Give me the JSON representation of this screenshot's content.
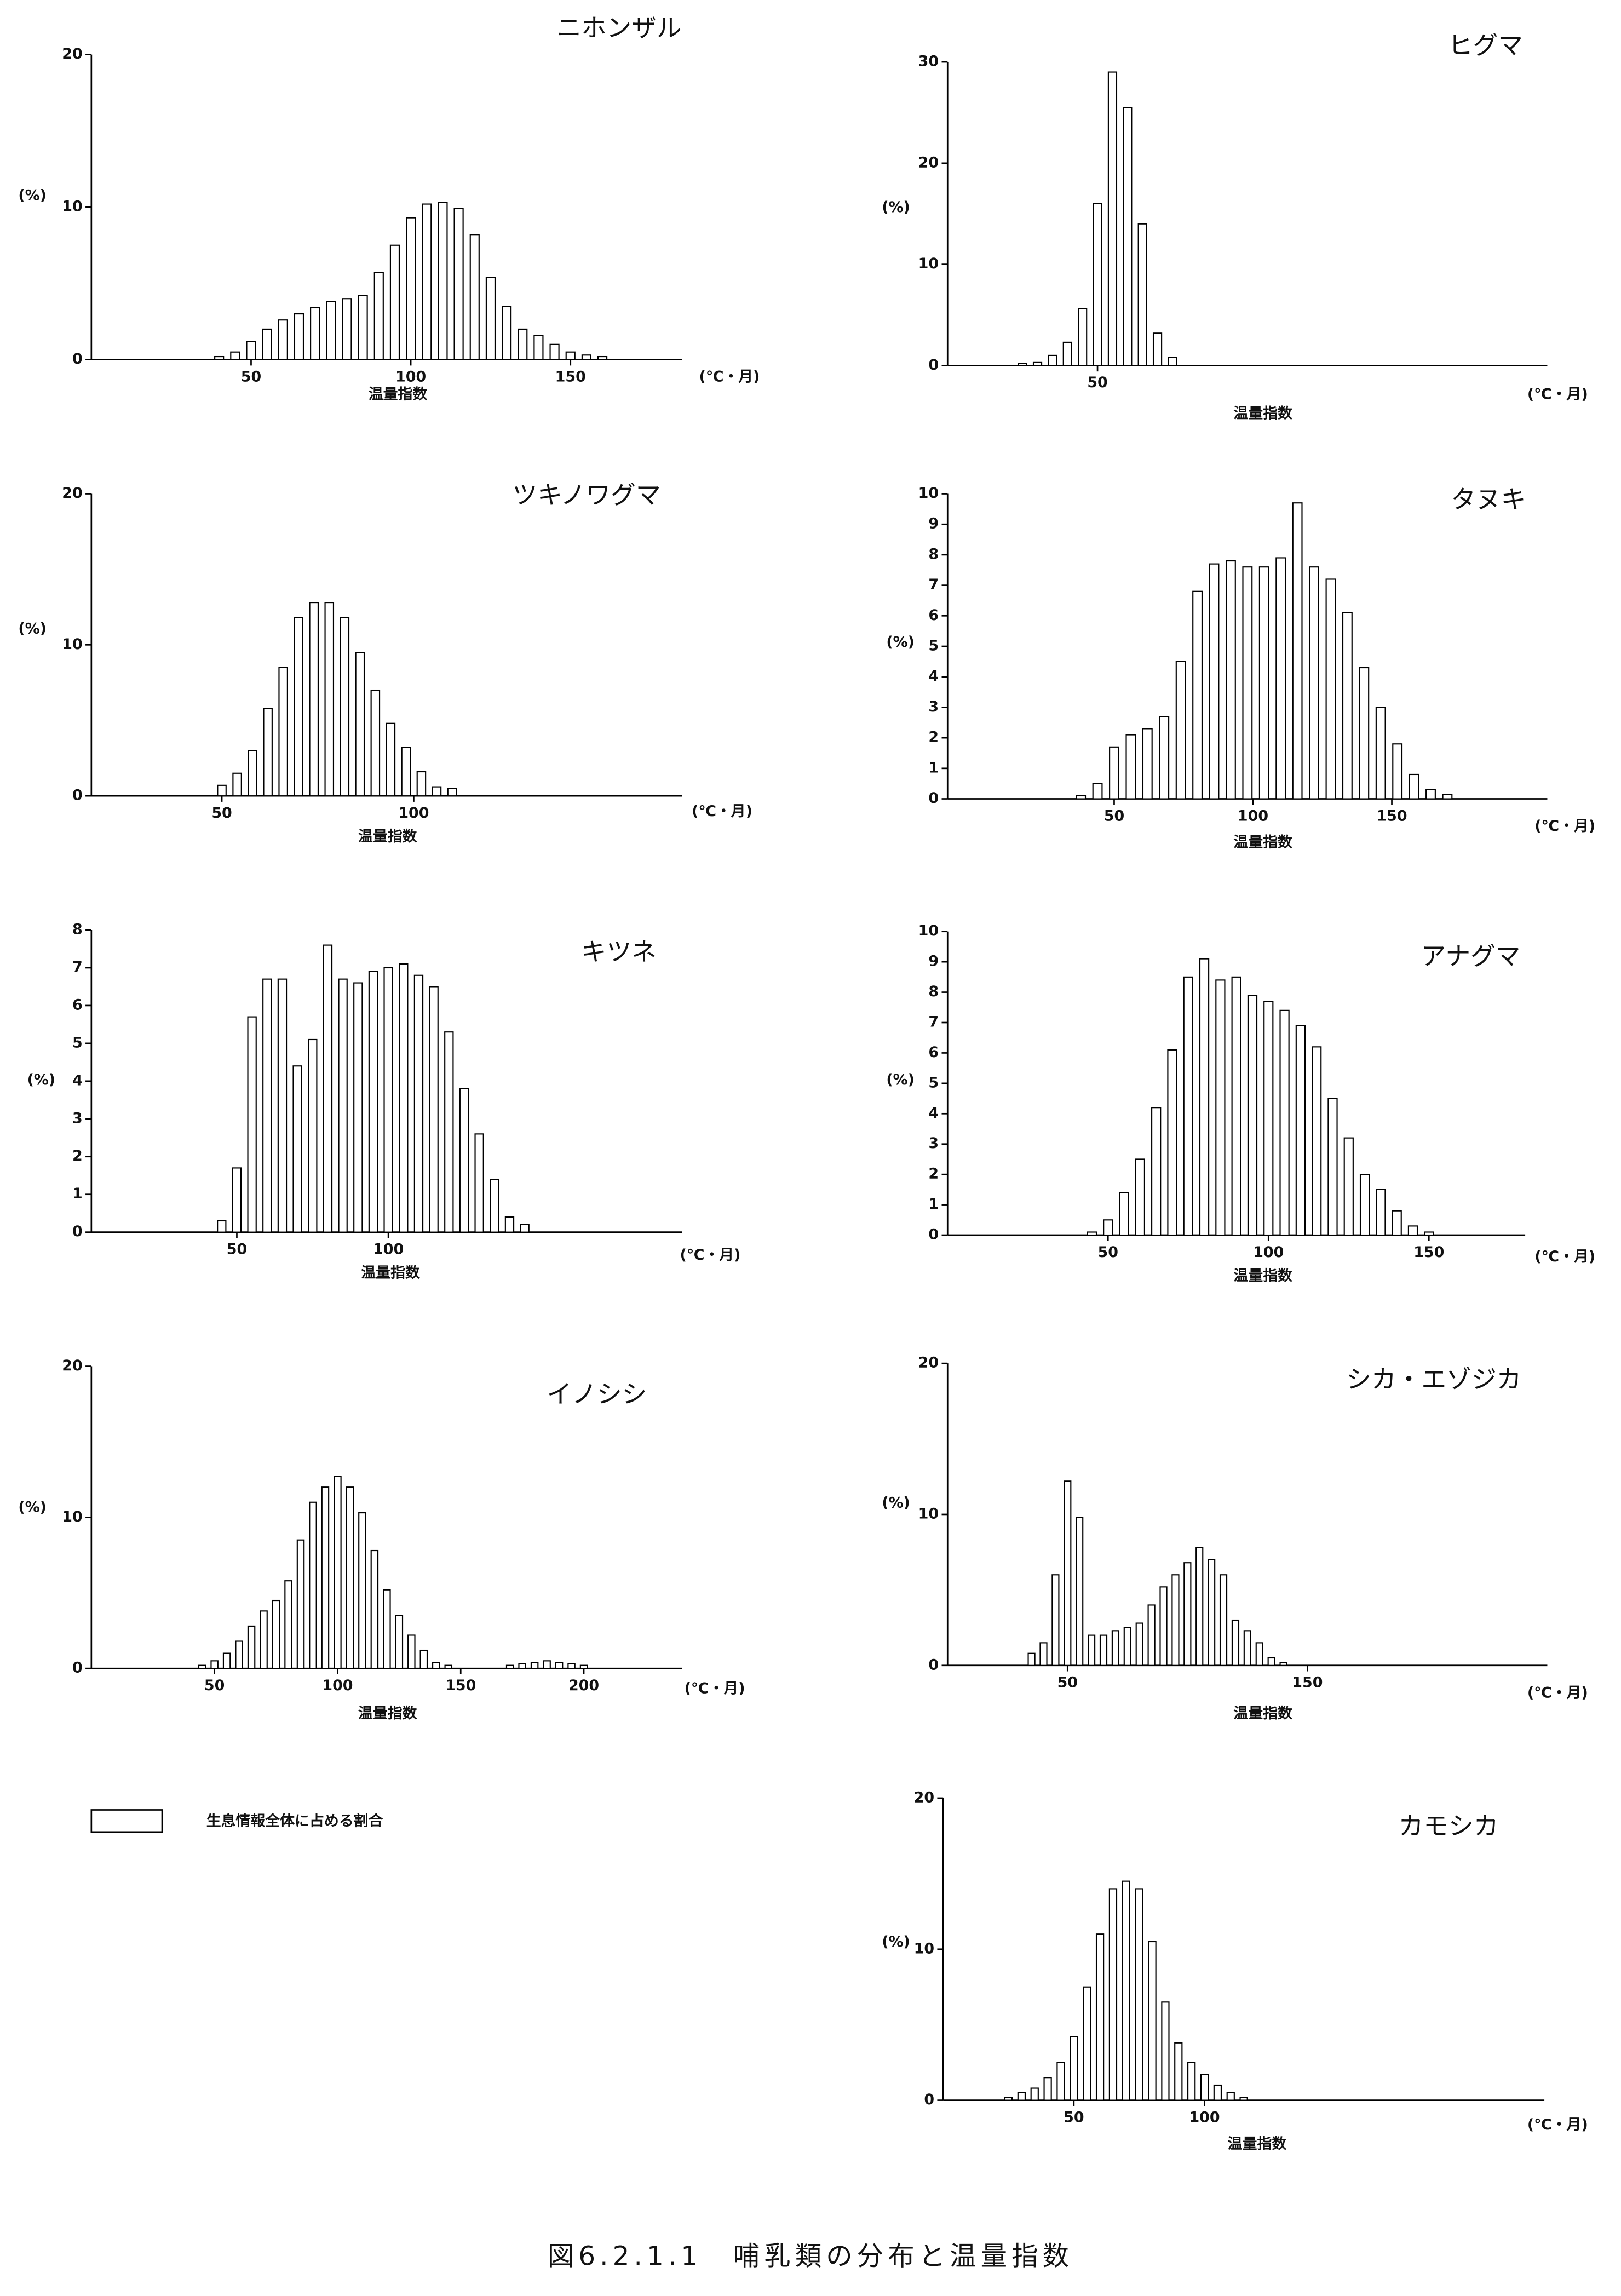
{
  "chart_data": [
    {
      "type": "bar",
      "title": "ニホンザル",
      "ylabel": "(%)",
      "xlabel": "温量指数",
      "xunit": "(℃・月)",
      "color": "#ffffff",
      "x": [
        40,
        45,
        50,
        55,
        60,
        65,
        70,
        75,
        80,
        85,
        90,
        95,
        100,
        105,
        110,
        115,
        120,
        125,
        130,
        135,
        140,
        145,
        150,
        155,
        160
      ],
      "values": [
        0.2,
        0.5,
        1.2,
        2.0,
        2.6,
        3.0,
        3.4,
        3.8,
        4.0,
        4.2,
        5.7,
        7.5,
        9.3,
        10.2,
        10.3,
        9.9,
        8.2,
        5.4,
        3.5,
        2.0,
        1.6,
        1.0,
        0.5,
        0.3,
        0.2
      ],
      "xlim": [
        0,
        185
      ],
      "xticks": [
        50,
        100,
        150
      ],
      "ylim": [
        0,
        20
      ],
      "yticks": [
        0,
        10,
        20
      ]
    },
    {
      "type": "bar",
      "title": "ヒグマ",
      "ylabel": "(%)",
      "xlabel": "温量指数",
      "xunit": "(℃・月)",
      "color": "#ffffff",
      "x": [
        25,
        30,
        35,
        40,
        45,
        50,
        55,
        60,
        65,
        70,
        75
      ],
      "values": [
        0.2,
        0.3,
        1.0,
        2.3,
        5.6,
        16,
        29,
        25.5,
        14,
        3.2,
        0.8
      ],
      "xlim": [
        0,
        200
      ],
      "xticks": [
        50
      ],
      "ylim": [
        0,
        30
      ],
      "yticks": [
        0,
        10,
        20,
        30
      ]
    },
    {
      "type": "bar",
      "title": "ツキノワグマ",
      "ylabel": "(%)",
      "xlabel": "温量指数",
      "xunit": "(℃・月)",
      "color": "#ffffff",
      "x": [
        50,
        54,
        58,
        62,
        66,
        70,
        74,
        78,
        82,
        86,
        90,
        94,
        98,
        102,
        106,
        110
      ],
      "values": [
        0.7,
        1.5,
        3.0,
        5.8,
        8.5,
        11.8,
        12.8,
        12.8,
        11.8,
        9.5,
        7.0,
        4.8,
        3.2,
        1.6,
        0.6,
        0.5
      ],
      "xlim": [
        16,
        170
      ],
      "xticks": [
        50,
        100
      ],
      "ylim": [
        0,
        20
      ],
      "yticks": [
        0,
        10,
        20
      ]
    },
    {
      "type": "bar",
      "title": "タヌキ",
      "ylabel": "(%)",
      "xlabel": "温量指数",
      "xunit": "(℃・月)",
      "color": "#ffffff",
      "x": [
        38,
        44,
        50,
        56,
        62,
        68,
        74,
        80,
        86,
        92,
        98,
        104,
        110,
        116,
        122,
        128,
        134,
        140,
        146,
        152,
        158,
        164,
        170
      ],
      "values": [
        0.1,
        0.5,
        1.7,
        2.1,
        2.3,
        2.7,
        4.5,
        6.8,
        7.7,
        7.8,
        7.6,
        7.6,
        7.9,
        9.7,
        7.6,
        7.2,
        6.1,
        4.3,
        3.0,
        1.8,
        0.8,
        0.3,
        0.15
      ],
      "xlim": [
        -10,
        206
      ],
      "xticks": [
        50,
        100,
        150
      ],
      "ylim": [
        0,
        10
      ],
      "yticks": [
        0,
        1,
        2,
        3,
        4,
        5,
        6,
        7,
        8,
        9,
        10
      ]
    },
    {
      "type": "bar",
      "title": "キツネ",
      "ylabel": "(%)",
      "xlabel": "温量指数",
      "xunit": "(℃・月)",
      "color": "#ffffff",
      "x": [
        45,
        50,
        55,
        60,
        65,
        70,
        75,
        80,
        85,
        90,
        95,
        100,
        105,
        110,
        115,
        120,
        125,
        130,
        135,
        140,
        145
      ],
      "values": [
        0.3,
        1.7,
        5.7,
        6.7,
        6.7,
        4.4,
        5.1,
        7.6,
        6.7,
        6.6,
        6.9,
        7.0,
        7.1,
        6.8,
        6.5,
        5.3,
        3.8,
        2.6,
        1.4,
        0.4,
        0.2
      ],
      "xlim": [
        2,
        197
      ],
      "xticks": [
        50,
        100
      ],
      "ylim": [
        0,
        8
      ],
      "yticks": [
        0,
        1,
        2,
        3,
        4,
        5,
        6,
        7,
        8
      ]
    },
    {
      "type": "bar",
      "title": "アナグマ",
      "ylabel": "(%)",
      "xlabel": "温量指数",
      "xunit": "(℃・月)",
      "color": "#ffffff",
      "x": [
        45,
        50,
        55,
        60,
        65,
        70,
        75,
        80,
        85,
        90,
        95,
        100,
        105,
        110,
        115,
        120,
        125,
        130,
        135,
        140,
        145,
        150
      ],
      "values": [
        0.1,
        0.5,
        1.4,
        2.5,
        4.2,
        6.1,
        8.5,
        9.1,
        8.4,
        8.5,
        7.9,
        7.7,
        7.4,
        6.9,
        6.2,
        4.5,
        3.2,
        2.0,
        1.5,
        0.8,
        0.3,
        0.1
      ],
      "xlim": [
        0,
        180
      ],
      "xticks": [
        50,
        100,
        150
      ],
      "ylim": [
        0,
        10
      ],
      "yticks": [
        0,
        1,
        2,
        3,
        4,
        5,
        6,
        7,
        8,
        9,
        10
      ]
    },
    {
      "type": "bar",
      "title": "イノシシ",
      "ylabel": "(%)",
      "xlabel": "温量指数",
      "xunit": "(℃・月)",
      "color": "#ffffff",
      "x": [
        45,
        50,
        55,
        60,
        65,
        70,
        75,
        80,
        85,
        90,
        95,
        100,
        105,
        110,
        115,
        120,
        125,
        130,
        135,
        140,
        145,
        170,
        175,
        180,
        185,
        190,
        195,
        200
      ],
      "values": [
        0.2,
        0.5,
        1.0,
        1.8,
        2.8,
        3.8,
        4.5,
        5.8,
        8.5,
        11,
        12,
        12.7,
        12,
        10.3,
        7.8,
        5.2,
        3.5,
        2.2,
        1.2,
        0.4,
        0.2,
        0.2,
        0.3,
        0.4,
        0.5,
        0.4,
        0.3,
        0.2
      ],
      "xlim": [
        0,
        240
      ],
      "xticks": [
        50,
        100,
        150,
        200
      ],
      "ylim": [
        0,
        20
      ],
      "yticks": [
        0,
        10,
        20
      ]
    },
    {
      "type": "bar",
      "title": "シカ・エゾジカ",
      "ylabel": "(%)",
      "xlabel": "温量指数",
      "xunit": "(℃・月)",
      "color": "#ffffff",
      "x": [
        35,
        40,
        45,
        50,
        55,
        60,
        65,
        70,
        75,
        80,
        85,
        90,
        95,
        100,
        105,
        110,
        115,
        120,
        125,
        130,
        135,
        140
      ],
      "values": [
        0.8,
        1.5,
        6.0,
        12.2,
        9.8,
        2.0,
        2.0,
        2.3,
        2.5,
        2.8,
        4.0,
        5.2,
        6.0,
        6.8,
        7.8,
        7.0,
        6.0,
        3.0,
        2.3,
        1.5,
        0.5,
        0.2
      ],
      "xlim": [
        0,
        250
      ],
      "xticks": [
        50,
        150
      ],
      "ylim": [
        0,
        20
      ],
      "yticks": [
        0,
        10,
        20
      ]
    },
    {
      "type": "bar",
      "title": "カモシカ",
      "ylabel": "(%)",
      "xlabel": "温量指数",
      "xunit": "(℃・月)",
      "color": "#ffffff",
      "x": [
        25,
        30,
        35,
        40,
        45,
        50,
        55,
        60,
        65,
        70,
        75,
        80,
        85,
        90,
        95,
        100,
        105,
        110,
        115
      ],
      "values": [
        0.2,
        0.5,
        0.8,
        1.5,
        2.5,
        4.2,
        7.5,
        11,
        14,
        14.5,
        14,
        10.5,
        6.5,
        3.8,
        2.5,
        1.7,
        1.0,
        0.5,
        0.2
      ],
      "xlim": [
        0,
        230
      ],
      "xticks": [
        50,
        100
      ],
      "ylim": [
        0,
        20
      ],
      "yticks": [
        0,
        10,
        20
      ]
    }
  ],
  "legend": {
    "label": "生息情報全体に占める割合"
  },
  "caption": "図6.2.1.1　哺乳類の分布と温量指数"
}
